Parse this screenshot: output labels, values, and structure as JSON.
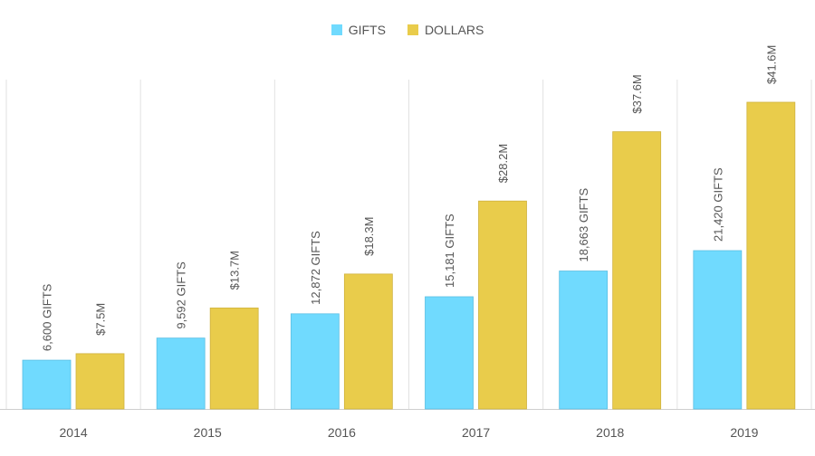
{
  "chart_data": {
    "type": "bar",
    "categories": [
      "2014",
      "2015",
      "2016",
      "2017",
      "2018",
      "2019"
    ],
    "series": [
      {
        "name": "GIFTS",
        "color": "#70DAFE",
        "values": [
          6600,
          9592,
          12872,
          15181,
          18663,
          21420
        ],
        "labels": [
          "6,600 GIFTS",
          "9,592 GIFTS",
          "12,872 GIFTS",
          "15,181 GIFTS",
          "18,663 GIFTS",
          "21,420 GIFTS"
        ]
      },
      {
        "name": "DOLLARS",
        "color": "#E9CC4B",
        "values": [
          7.5,
          13.7,
          18.3,
          28.2,
          37.6,
          41.6
        ],
        "labels": [
          "$7.5M",
          "$13.7M",
          "$18.3M",
          "$28.2M",
          "$37.6M",
          "$41.6M"
        ]
      }
    ],
    "legend_position": "top-center",
    "grid": "vertical separators"
  }
}
